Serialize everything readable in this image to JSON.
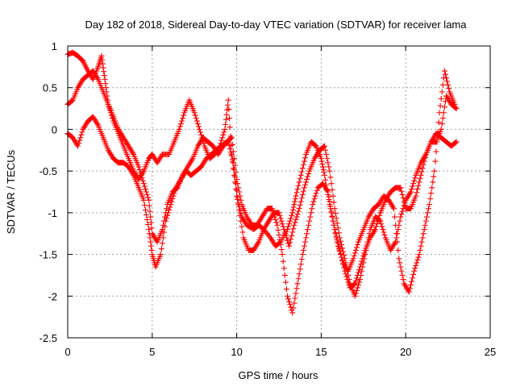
{
  "chart_data": {
    "type": "scatter",
    "title": "Day 182 of 2018, Sidereal Day-to-day VTEC variation (SDTVAR) for receiver lama",
    "xlabel": "GPS time / hours",
    "ylabel": "SDTVAR / TECUs",
    "xlim": [
      0,
      25
    ],
    "ylim": [
      -2.5,
      1
    ],
    "xticks": [
      0,
      5,
      10,
      15,
      20,
      25
    ],
    "yticks": [
      1,
      0.5,
      0,
      -0.5,
      -1,
      -1.5,
      -2,
      -2.5
    ],
    "xtick_labels": [
      "0",
      "5",
      "10",
      "15",
      "20",
      "25"
    ],
    "ytick_labels": [
      "1",
      "0.5",
      "0",
      "-0.5",
      "-1",
      "-1.5",
      "-2",
      "-2.5"
    ],
    "grid": true,
    "marker": "plus",
    "color": "#ff0000",
    "series": [
      {
        "x": [
          0.0,
          0.3,
          0.6,
          0.9,
          1.2,
          1.5,
          1.8,
          2.0,
          2.2,
          2.4,
          2.7,
          3.0,
          3.3,
          3.6,
          3.9,
          4.2,
          4.5,
          4.8,
          5.0,
          5.3,
          5.6,
          6.0,
          6.3,
          6.6,
          6.9,
          7.2,
          7.5,
          7.8,
          8.1,
          8.4,
          8.7,
          9.0,
          9.3,
          9.5,
          9.7,
          10.0,
          10.3,
          10.6,
          11.0,
          11.3,
          11.6,
          12.0,
          12.3,
          12.6,
          13.0,
          13.3,
          13.5,
          13.8,
          14.1,
          14.4,
          14.7,
          15.0,
          15.2,
          15.5,
          15.8,
          16.1,
          16.4,
          16.7,
          17.0,
          17.3,
          17.6,
          17.9,
          18.2,
          18.5,
          18.8,
          19.1,
          19.4,
          19.7,
          20.0,
          20.3,
          20.6,
          20.9,
          21.2,
          21.5,
          21.8,
          22.1,
          22.4,
          22.7,
          23.0
        ],
        "y": [
          0.9,
          0.92,
          0.88,
          0.82,
          0.7,
          0.6,
          0.75,
          0.88,
          0.6,
          0.3,
          0.1,
          -0.05,
          -0.2,
          -0.35,
          -0.5,
          -0.6,
          -0.5,
          -0.35,
          -0.3,
          -0.4,
          -0.3,
          -0.3,
          -0.15,
          0.0,
          0.2,
          0.35,
          0.2,
          0.0,
          -0.2,
          -0.35,
          -0.3,
          -0.2,
          0.0,
          0.35,
          -0.3,
          -0.8,
          -1.05,
          -1.15,
          -1.2,
          -1.15,
          -1.2,
          -1.3,
          -1.4,
          -1.35,
          -1.2,
          -1.0,
          -0.8,
          -0.55,
          -0.3,
          -0.15,
          -0.2,
          -0.35,
          -0.55,
          -0.9,
          -1.2,
          -1.45,
          -1.7,
          -1.9,
          -1.85,
          -1.65,
          -1.45,
          -1.3,
          -1.2,
          -1.0,
          -0.85,
          -0.75,
          -0.7,
          -0.7,
          -0.95,
          -0.95,
          -0.8,
          -0.55,
          -0.3,
          -0.15,
          -0.05,
          -0.1,
          -0.15,
          -0.2,
          -0.15
        ]
      },
      {
        "x": [
          0.0,
          0.3,
          0.6,
          0.9,
          1.2,
          1.5,
          1.8,
          2.1,
          2.4,
          2.7,
          3.0,
          3.3,
          3.6,
          3.9,
          4.2,
          4.5,
          4.8,
          5.0,
          5.3,
          5.6,
          5.9,
          6.2,
          6.5,
          6.8,
          7.1,
          7.4,
          7.7,
          8.0,
          8.3,
          8.6,
          8.9,
          9.2,
          9.5,
          9.8,
          10.1,
          10.4,
          10.7,
          11.0,
          11.3,
          11.6,
          11.9,
          12.2,
          12.5,
          12.8,
          13.1,
          13.4,
          13.7,
          14.0,
          14.3,
          14.6,
          14.9,
          15.2,
          15.5,
          15.8,
          16.1,
          16.4,
          16.7,
          17.0,
          17.3,
          17.6,
          17.9,
          18.2,
          18.5,
          18.8,
          19.1,
          19.4,
          19.7,
          20.0,
          20.3,
          20.6,
          20.9,
          21.2,
          21.5,
          21.8,
          22.1,
          22.4,
          22.7,
          23.0
        ],
        "y": [
          0.3,
          0.35,
          0.5,
          0.6,
          0.65,
          0.7,
          0.6,
          0.45,
          0.3,
          0.15,
          0.0,
          -0.1,
          -0.2,
          -0.3,
          -0.45,
          -0.65,
          -0.85,
          -1.25,
          -1.35,
          -1.2,
          -0.9,
          -0.75,
          -0.7,
          -0.55,
          -0.45,
          -0.35,
          -0.2,
          -0.1,
          -0.15,
          -0.2,
          -0.3,
          -0.2,
          -0.15,
          -0.4,
          -0.9,
          -1.3,
          -1.45,
          -1.45,
          -1.35,
          -1.2,
          -1.1,
          -1.0,
          -1.0,
          -1.2,
          -1.4,
          -1.15,
          -0.95,
          -0.7,
          -0.5,
          -0.35,
          -0.25,
          -0.2,
          -0.5,
          -0.95,
          -1.3,
          -1.55,
          -1.85,
          -2.0,
          -1.8,
          -1.5,
          -1.2,
          -1.05,
          -1.1,
          -1.3,
          -1.45,
          -1.35,
          -1.05,
          -0.85,
          -0.75,
          -0.55,
          -0.4,
          -0.3,
          -0.15,
          -0.15,
          0.0,
          0.4,
          0.3,
          0.25
        ]
      },
      {
        "x": [
          0.0,
          0.3,
          0.6,
          0.9,
          1.2,
          1.5,
          1.8,
          2.1,
          2.4,
          2.7,
          3.0,
          3.3,
          3.6,
          3.9,
          4.2,
          4.5,
          4.8,
          5.0,
          5.2,
          5.5,
          5.8,
          6.1,
          6.4,
          6.7,
          7.0,
          7.3,
          7.6,
          7.9,
          8.2,
          8.5,
          8.8,
          9.1,
          9.4,
          9.7,
          10.0,
          10.3,
          10.6,
          10.9,
          11.2,
          11.5,
          11.8,
          12.1,
          12.4,
          12.7,
          13.0,
          13.3,
          13.6,
          13.9,
          14.2,
          14.5,
          14.8,
          15.1,
          15.4,
          15.7,
          16.0,
          16.3,
          16.6,
          16.9,
          17.2,
          17.5,
          17.8,
          18.1,
          18.4,
          18.7,
          19.0,
          19.3,
          19.6,
          19.9,
          20.2,
          20.5,
          20.8,
          21.1,
          21.4,
          21.7,
          22.0,
          22.3,
          22.6,
          22.9
        ],
        "y": [
          -0.05,
          -0.1,
          -0.2,
          0.0,
          0.1,
          0.15,
          0.05,
          -0.1,
          -0.25,
          -0.35,
          -0.4,
          -0.4,
          -0.45,
          -0.55,
          -0.7,
          -0.85,
          -1.2,
          -1.5,
          -1.65,
          -1.5,
          -1.1,
          -0.9,
          -0.7,
          -0.6,
          -0.5,
          -0.55,
          -0.5,
          -0.45,
          -0.35,
          -0.3,
          -0.25,
          -0.2,
          -0.15,
          -0.1,
          -0.6,
          -0.9,
          -1.05,
          -1.15,
          -1.15,
          -1.05,
          -0.95,
          -0.95,
          -1.15,
          -1.5,
          -2.0,
          -2.2,
          -1.85,
          -1.5,
          -1.2,
          -0.9,
          -0.7,
          -0.65,
          -0.75,
          -1.1,
          -1.4,
          -1.6,
          -1.7,
          -1.55,
          -1.35,
          -1.2,
          -1.05,
          -0.95,
          -0.9,
          -0.8,
          -0.85,
          -0.95,
          -1.55,
          -1.85,
          -1.95,
          -1.7,
          -1.5,
          -1.2,
          -0.9,
          -0.5,
          0.2,
          0.7,
          0.45,
          0.3
        ]
      }
    ]
  }
}
